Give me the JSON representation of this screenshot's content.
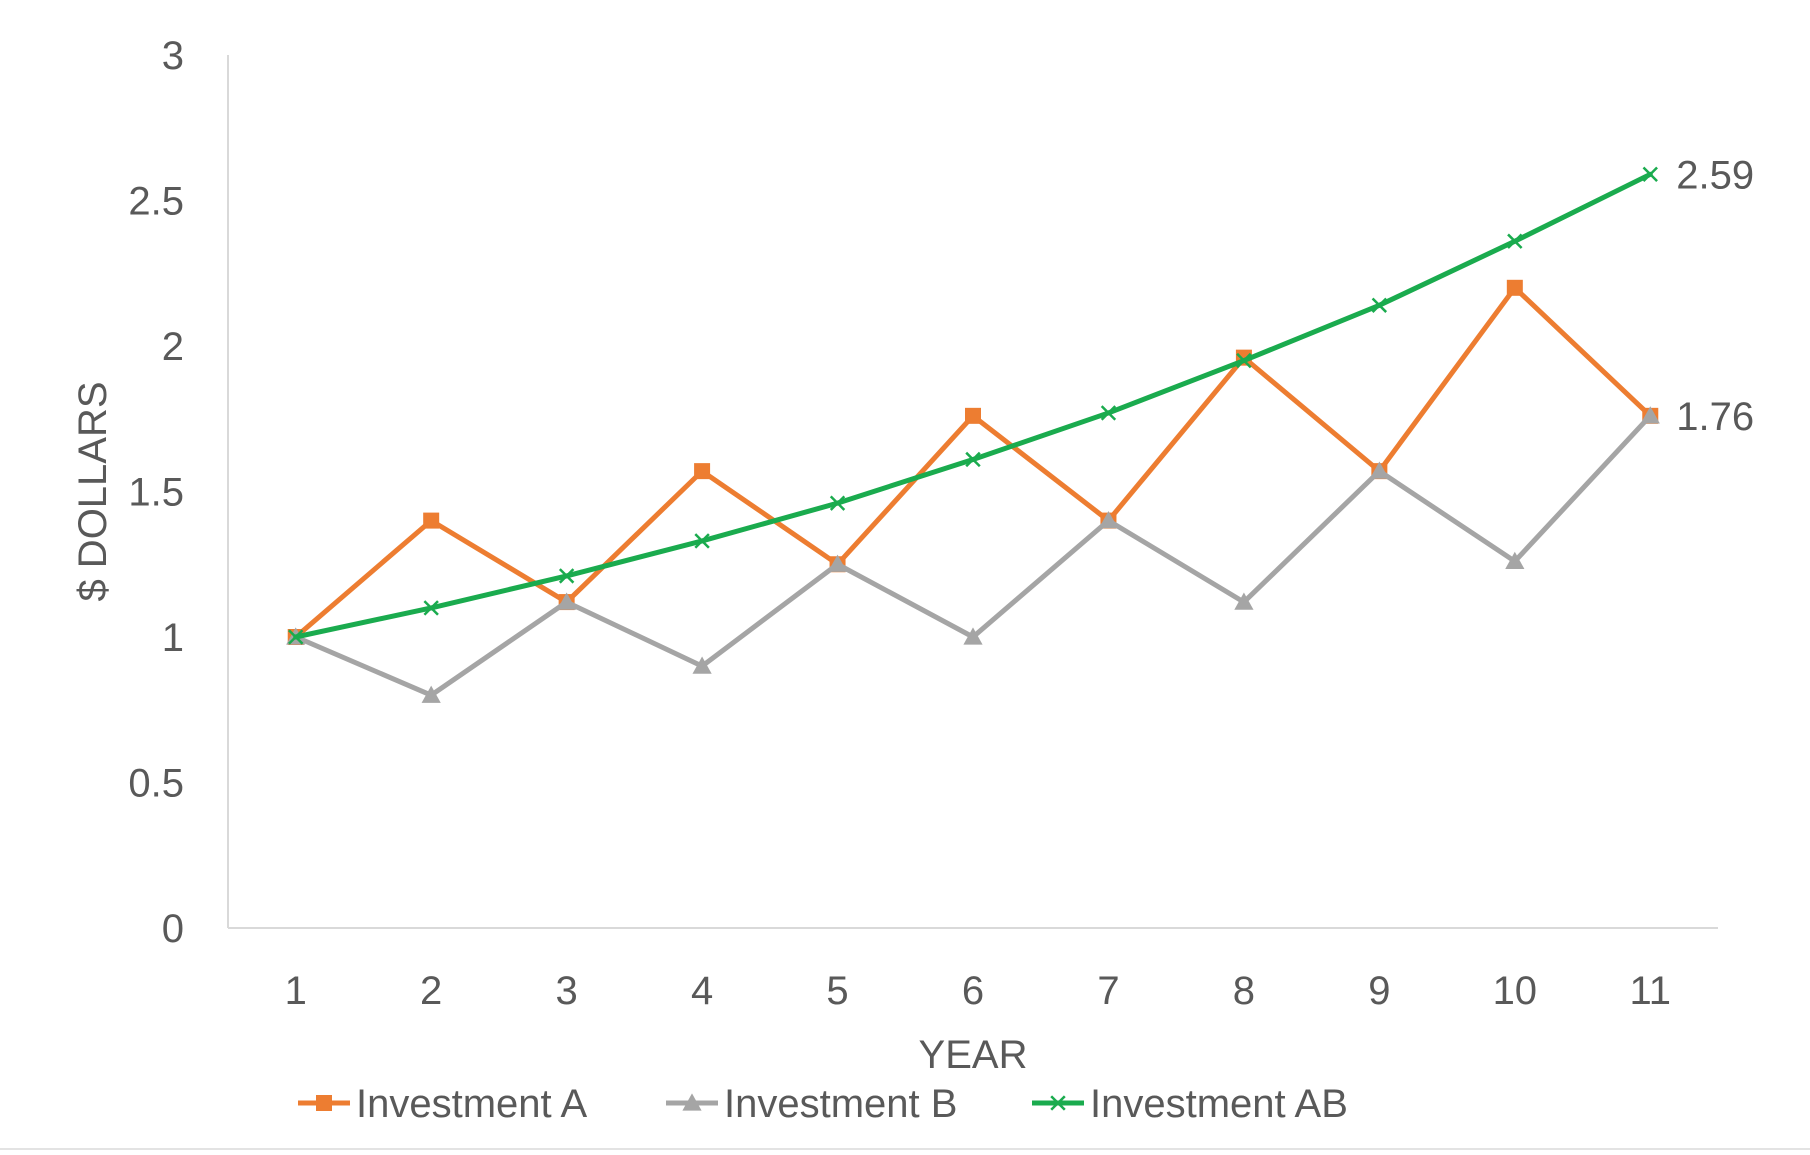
{
  "chart_data": {
    "type": "line",
    "title": "",
    "xlabel": "YEAR",
    "ylabel": "$ DOLLARS",
    "categories": [
      "1",
      "2",
      "3",
      "4",
      "5",
      "6",
      "7",
      "8",
      "9",
      "10",
      "11"
    ],
    "ylim": [
      0,
      3
    ],
    "yticks": [
      "0",
      "0.5",
      "1",
      "1.5",
      "2",
      "2.5",
      "3"
    ],
    "grid": false,
    "legend_position": "bottom",
    "series": [
      {
        "name": "Investment A",
        "color": "#ED7D31",
        "marker": "square",
        "values": [
          1,
          1.4,
          1.12,
          1.57,
          1.25,
          1.76,
          1.4,
          1.96,
          1.57,
          2.2,
          1.76
        ],
        "end_label": ""
      },
      {
        "name": "Investment B",
        "color": "#A5A5A5",
        "marker": "triangle",
        "values": [
          1,
          0.8,
          1.12,
          0.9,
          1.25,
          1.0,
          1.4,
          1.12,
          1.57,
          1.26,
          1.76
        ],
        "end_label": "1.76"
      },
      {
        "name": "Investment AB",
        "color": "#1AAB4E",
        "marker": "x",
        "values": [
          1,
          1.1,
          1.21,
          1.33,
          1.46,
          1.61,
          1.77,
          1.95,
          2.14,
          2.36,
          2.59
        ],
        "end_label": "2.59"
      }
    ]
  }
}
